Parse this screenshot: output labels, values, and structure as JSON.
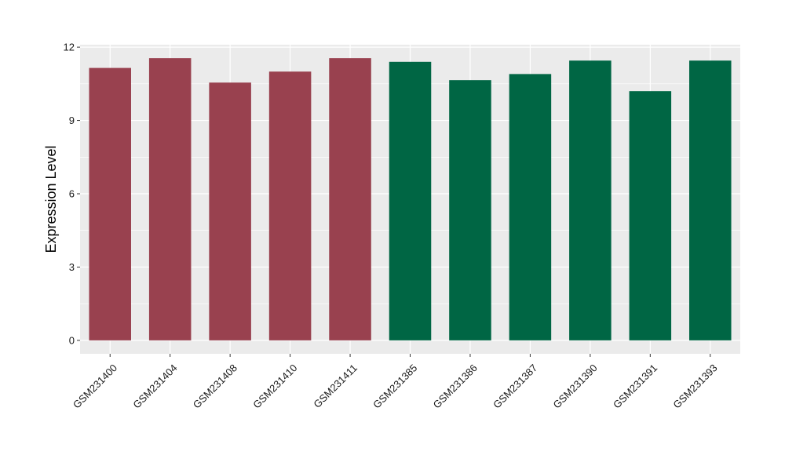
{
  "chart_data": {
    "type": "bar",
    "title": "",
    "xlabel": "",
    "ylabel": "Expression Level",
    "ylim": [
      -0.55,
      12.1
    ],
    "yticks": [
      0,
      3,
      6,
      9,
      12
    ],
    "grid": true,
    "panel_background": "#ebebeb",
    "categories": [
      "GSM231400",
      "GSM231404",
      "GSM231408",
      "GSM231410",
      "GSM231411",
      "GSM231385",
      "GSM231386",
      "GSM231387",
      "GSM231390",
      "GSM231391",
      "GSM231393"
    ],
    "values": [
      11.15,
      11.55,
      10.55,
      11.0,
      11.55,
      11.4,
      10.65,
      10.9,
      11.45,
      10.2,
      11.45
    ],
    "bar_colors": [
      "#99414f",
      "#99414f",
      "#99414f",
      "#99414f",
      "#99414f",
      "#006644",
      "#006644",
      "#006644",
      "#006644",
      "#006644",
      "#006644"
    ]
  }
}
